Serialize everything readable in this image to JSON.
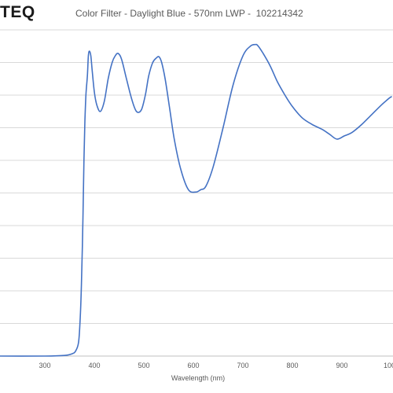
{
  "brand": {
    "logo_text": "TEQ"
  },
  "chart_data": {
    "type": "line",
    "title": "Color Filter - Daylight Blue - 570nm LWP -  102214342",
    "xlabel": "Wavelength (nm)",
    "ylabel": "",
    "xlim": [
      200,
      1000
    ],
    "ylim": [
      0,
      100
    ],
    "x_ticks": [
      "300",
      "400",
      "500",
      "600",
      "700",
      "800",
      "900",
      "1000"
    ],
    "grid": true,
    "line_color": "#4472c4",
    "series": [
      {
        "x": [
          200,
          300,
          340,
          355,
          362,
          368,
          371,
          374,
          377,
          379,
          381,
          383,
          386,
          388,
          390,
          393,
          396,
          400,
          405,
          412,
          420,
          428,
          436,
          442,
          448,
          455,
          465,
          475,
          485,
          495,
          503,
          510,
          518,
          526,
          531,
          536,
          543,
          552,
          562,
          575,
          590,
          605,
          615,
          625,
          640,
          660,
          680,
          700,
          715,
          725,
          730,
          740,
          755,
          770,
          785,
          800,
          820,
          840,
          860,
          875,
          890,
          905,
          920,
          940,
          960,
          980,
          995,
          1000
        ],
        "y": [
          0,
          0,
          0.2,
          0.7,
          1.5,
          4,
          10,
          22,
          42,
          60,
          72,
          80,
          86,
          92,
          93.5,
          92,
          87,
          81,
          77,
          75,
          78,
          85,
          90,
          92,
          92.8,
          91,
          85,
          79,
          75,
          75.5,
          80,
          86,
          90,
          91.5,
          91.7,
          90,
          85,
          76,
          66,
          57,
          51,
          50.3,
          51,
          52,
          58,
          70,
          83,
          92,
          95,
          95.5,
          95.2,
          93,
          89,
          84,
          80,
          76.5,
          73,
          71,
          69.5,
          68,
          66.5,
          67.5,
          68.5,
          71,
          74,
          77,
          79,
          79.5
        ]
      }
    ]
  }
}
